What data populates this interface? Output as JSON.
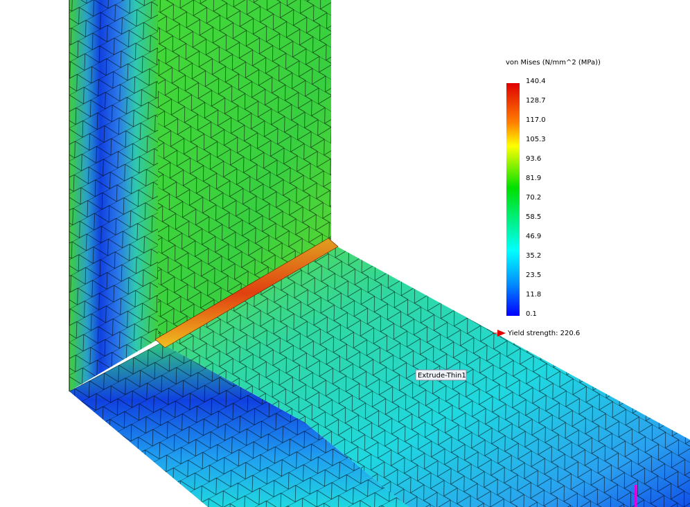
{
  "legend": {
    "title": "von Mises (N/mm^2 (MPa))",
    "ticks": [
      "140.4",
      "128.7",
      "117.0",
      "105.3",
      "93.6",
      "81.9",
      "70.2",
      "58.5",
      "46.9",
      "35.2",
      "23.5",
      "11.8",
      "0.1"
    ],
    "yield_label": "Yield strength: 220.6"
  },
  "part_label": "Extrude-Thin1"
}
